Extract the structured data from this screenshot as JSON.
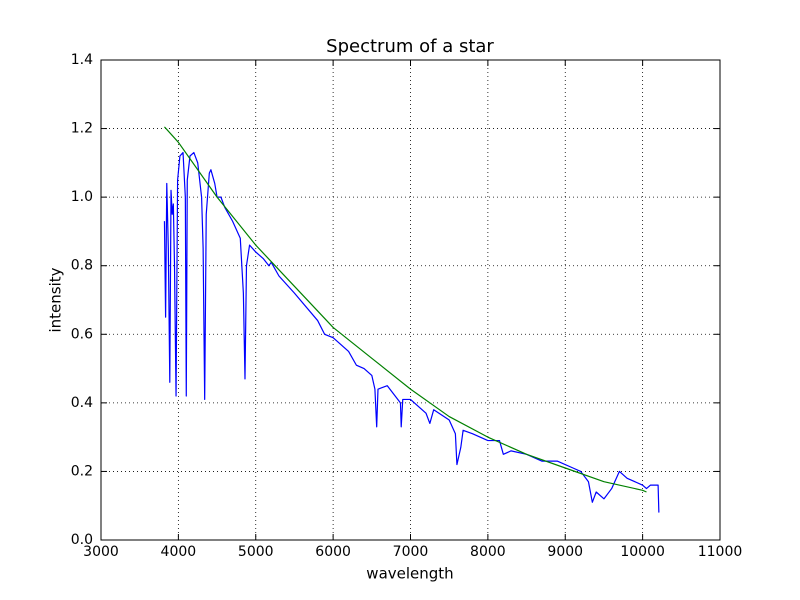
{
  "chart_data": {
    "type": "line",
    "title": "Spectrum of a star",
    "x_label": "wavelength",
    "y_label": "intensity",
    "xlim": [
      3000,
      11000
    ],
    "xticks": [
      3000,
      4000,
      5000,
      6000,
      7000,
      8000,
      9000,
      10000,
      11000
    ],
    "ylim": [
      0,
      1.4
    ],
    "yticks": [
      {
        "value": 0,
        "label": "0.0"
      },
      0.2,
      0.4,
      0.6,
      0.8,
      {
        "value": 1,
        "label": "1.0"
      },
      1.2,
      1.4
    ],
    "grid": true,
    "series": [
      {
        "color": "#0000ff",
        "x": [
          3820,
          3835,
          3850,
          3870,
          3889,
          3905,
          3920,
          3935,
          3950,
          3970,
          3990,
          4020,
          4060,
          4090,
          4102,
          4115,
          4150,
          4200,
          4250,
          4300,
          4320,
          4340,
          4360,
          4400,
          4420,
          4470,
          4500,
          4550,
          4600,
          4700,
          4800,
          4840,
          4861,
          4880,
          4920,
          5000,
          5100,
          5170,
          5200,
          5300,
          5500,
          5800,
          5890,
          6000,
          6200,
          6300,
          6400,
          6500,
          6540,
          6563,
          6580,
          6700,
          6870,
          6880,
          6900,
          7000,
          7100,
          7200,
          7250,
          7300,
          7500,
          7580,
          7600,
          7650,
          7680,
          7800,
          8000,
          8150,
          8200,
          8300,
          8500,
          8700,
          8900,
          9100,
          9200,
          9300,
          9350,
          9400,
          9500,
          9600,
          9700,
          9800,
          10000,
          10050,
          10100,
          10200,
          10210
        ],
        "values": [
          0.93,
          0.65,
          1.04,
          0.85,
          0.46,
          1.02,
          0.95,
          0.98,
          0.8,
          0.42,
          1.05,
          1.12,
          1.13,
          1.0,
          0.42,
          1.05,
          1.12,
          1.13,
          1.1,
          1.0,
          0.85,
          0.41,
          0.95,
          1.07,
          1.08,
          1.04,
          1.0,
          1.0,
          0.97,
          0.93,
          0.88,
          0.72,
          0.47,
          0.8,
          0.86,
          0.84,
          0.82,
          0.8,
          0.81,
          0.77,
          0.72,
          0.64,
          0.6,
          0.59,
          0.55,
          0.51,
          0.5,
          0.48,
          0.44,
          0.33,
          0.44,
          0.45,
          0.4,
          0.33,
          0.41,
          0.41,
          0.39,
          0.37,
          0.34,
          0.38,
          0.35,
          0.31,
          0.22,
          0.27,
          0.32,
          0.31,
          0.29,
          0.29,
          0.25,
          0.26,
          0.25,
          0.23,
          0.23,
          0.21,
          0.2,
          0.17,
          0.11,
          0.14,
          0.12,
          0.15,
          0.2,
          0.18,
          0.16,
          0.15,
          0.16,
          0.16,
          0.08
        ]
      },
      {
        "color": "#008000",
        "x": [
          3820,
          4000,
          4500,
          5000,
          5500,
          6000,
          6500,
          7000,
          7500,
          8000,
          8500,
          9000,
          9500,
          10000,
          10050
        ],
        "values": [
          1.205,
          1.16,
          1.0,
          0.86,
          0.74,
          0.62,
          0.53,
          0.44,
          0.36,
          0.3,
          0.25,
          0.21,
          0.17,
          0.145,
          0.14
        ]
      }
    ]
  }
}
